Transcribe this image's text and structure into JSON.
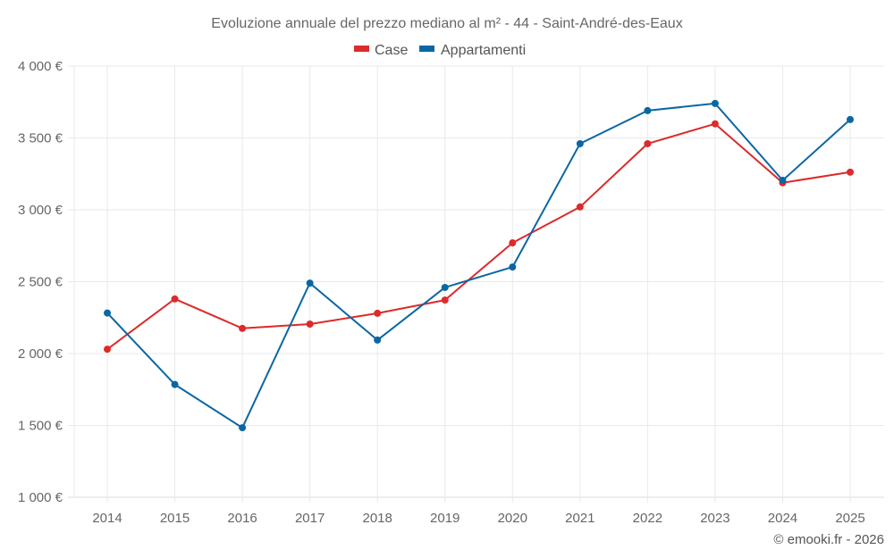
{
  "chart_data": {
    "type": "line",
    "title": "Evoluzione annuale del prezzo mediano al m² - 44 - Saint-André-des-Eaux",
    "xlabel": "",
    "ylabel": "",
    "x": [
      "2014",
      "2015",
      "2016",
      "2017",
      "2018",
      "2019",
      "2020",
      "2021",
      "2022",
      "2023",
      "2024",
      "2025"
    ],
    "series": [
      {
        "name": "Case",
        "color": "#dd2a2a",
        "values": [
          2030,
          2380,
          2175,
          2205,
          2280,
          2372,
          2770,
          3020,
          3460,
          3598,
          3188,
          3262
        ]
      },
      {
        "name": "Appartamenti",
        "color": "#0a67a3",
        "values": [
          2282,
          1785,
          1484,
          2490,
          2094,
          2460,
          2602,
          3460,
          3690,
          3740,
          3205,
          3628
        ]
      }
    ],
    "ylim": [
      1000,
      4000
    ],
    "yticks": [
      4000,
      3500,
      3000,
      2500,
      2000,
      1500,
      1000
    ],
    "ytick_labels": [
      "4 000 €",
      "3 500 €",
      "3 000 €",
      "2 500 €",
      "2 000 €",
      "1 500 €",
      "1 000 €"
    ],
    "grid": true,
    "legend_position": "top-center",
    "credit": "© emooki.fr - 2026"
  }
}
